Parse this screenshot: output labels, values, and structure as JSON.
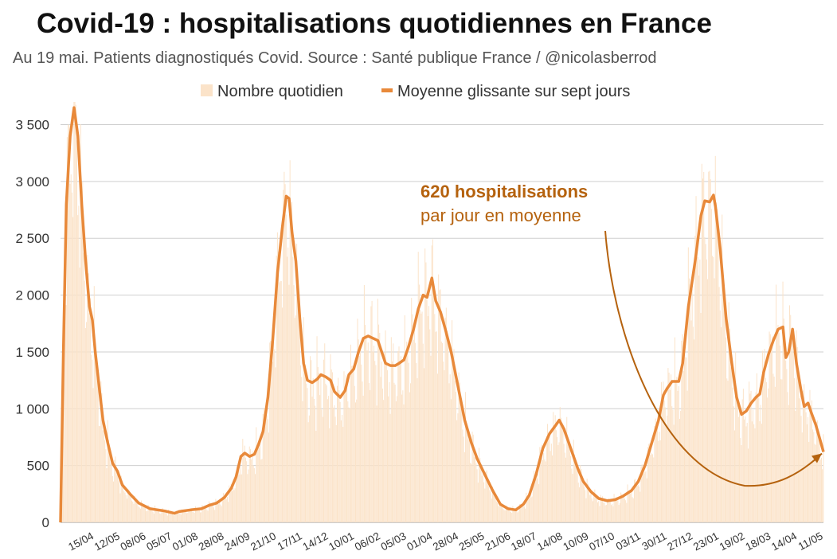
{
  "colors": {
    "bars": "#fbe3c9",
    "line": "#e8893a",
    "annotation": "#b5620e",
    "grid": "#cfcfcf"
  },
  "chart_data": {
    "type": "line",
    "title": "Covid-19 : hospitalisations quotidiennes en France",
    "subtitle": "Au 19 mai. Patients diagnostiqués Covid. Source : Santé publique France / @nicolasberrod",
    "legend": {
      "position": "top",
      "bars_label": "Nombre quotidien",
      "line_label": "Moyenne glissante sur sept jours"
    },
    "ylim": [
      0,
      3700
    ],
    "yticks": [
      0,
      500,
      1000,
      1500,
      2000,
      2500,
      3000,
      3500
    ],
    "ytick_labels": [
      "0",
      "500",
      "1 000",
      "1 500",
      "2 000",
      "2 500",
      "3 000",
      "3 500"
    ],
    "xlim": [
      "2020-03-19",
      "2022-05-19"
    ],
    "xticks": [
      {
        "date": "2020-04-15",
        "label": "15/04"
      },
      {
        "date": "2020-05-12",
        "label": "12/05"
      },
      {
        "date": "2020-06-08",
        "label": "08/06"
      },
      {
        "date": "2020-07-05",
        "label": "05/07"
      },
      {
        "date": "2020-08-01",
        "label": "01/08"
      },
      {
        "date": "2020-08-28",
        "label": "28/08"
      },
      {
        "date": "2020-09-24",
        "label": "24/09"
      },
      {
        "date": "2020-10-21",
        "label": "21/10"
      },
      {
        "date": "2020-11-17",
        "label": "17/11"
      },
      {
        "date": "2020-12-14",
        "label": "14/12"
      },
      {
        "date": "2021-01-10",
        "label": "10/01"
      },
      {
        "date": "2021-02-06",
        "label": "06/02"
      },
      {
        "date": "2021-03-05",
        "label": "05/03"
      },
      {
        "date": "2021-04-01",
        "label": "01/04"
      },
      {
        "date": "2021-04-28",
        "label": "28/04"
      },
      {
        "date": "2021-05-25",
        "label": "25/05"
      },
      {
        "date": "2021-06-21",
        "label": "21/06"
      },
      {
        "date": "2021-07-18",
        "label": "18/07"
      },
      {
        "date": "2021-08-14",
        "label": "14/08"
      },
      {
        "date": "2021-09-10",
        "label": "10/09"
      },
      {
        "date": "2021-10-07",
        "label": "07/10"
      },
      {
        "date": "2021-11-03",
        "label": "03/11"
      },
      {
        "date": "2021-11-30",
        "label": "30/11"
      },
      {
        "date": "2021-12-27",
        "label": "27/12"
      },
      {
        "date": "2022-01-23",
        "label": "23/01"
      },
      {
        "date": "2022-02-19",
        "label": "19/02"
      },
      {
        "date": "2022-03-18",
        "label": "18/03"
      },
      {
        "date": "2022-04-14",
        "label": "14/04"
      },
      {
        "date": "2022-05-11",
        "label": "11/05"
      }
    ],
    "series": [
      {
        "name": "Moyenne glissante sur sept jours",
        "type": "line",
        "points": [
          [
            "2020-03-19",
            0
          ],
          [
            "2020-03-22",
            1500
          ],
          [
            "2020-03-25",
            2800
          ],
          [
            "2020-03-29",
            3400
          ],
          [
            "2020-04-02",
            3650
          ],
          [
            "2020-04-06",
            3400
          ],
          [
            "2020-04-10",
            2800
          ],
          [
            "2020-04-14",
            2300
          ],
          [
            "2020-04-18",
            1900
          ],
          [
            "2020-04-21",
            1780
          ],
          [
            "2020-04-24",
            1500
          ],
          [
            "2020-04-28",
            1200
          ],
          [
            "2020-05-02",
            900
          ],
          [
            "2020-05-07",
            700
          ],
          [
            "2020-05-12",
            520
          ],
          [
            "2020-05-17",
            450
          ],
          [
            "2020-05-22",
            330
          ],
          [
            "2020-05-30",
            250
          ],
          [
            "2020-06-08",
            170
          ],
          [
            "2020-06-20",
            120
          ],
          [
            "2020-07-05",
            100
          ],
          [
            "2020-07-15",
            80
          ],
          [
            "2020-07-20",
            95
          ],
          [
            "2020-08-01",
            110
          ],
          [
            "2020-08-12",
            120
          ],
          [
            "2020-08-20",
            150
          ],
          [
            "2020-08-28",
            170
          ],
          [
            "2020-09-05",
            220
          ],
          [
            "2020-09-12",
            300
          ],
          [
            "2020-09-17",
            400
          ],
          [
            "2020-09-22",
            580
          ],
          [
            "2020-09-26",
            610
          ],
          [
            "2020-10-01",
            580
          ],
          [
            "2020-10-06",
            600
          ],
          [
            "2020-10-10",
            680
          ],
          [
            "2020-10-15",
            800
          ],
          [
            "2020-10-20",
            1100
          ],
          [
            "2020-10-25",
            1600
          ],
          [
            "2020-10-30",
            2200
          ],
          [
            "2020-11-04",
            2600
          ],
          [
            "2020-11-08",
            2870
          ],
          [
            "2020-11-11",
            2850
          ],
          [
            "2020-11-14",
            2550
          ],
          [
            "2020-11-18",
            2300
          ],
          [
            "2020-11-22",
            1800
          ],
          [
            "2020-11-26",
            1400
          ],
          [
            "2020-11-30",
            1250
          ],
          [
            "2020-12-05",
            1230
          ],
          [
            "2020-12-10",
            1260
          ],
          [
            "2020-12-14",
            1300
          ],
          [
            "2020-12-19",
            1280
          ],
          [
            "2020-12-24",
            1250
          ],
          [
            "2020-12-28",
            1150
          ],
          [
            "2021-01-03",
            1100
          ],
          [
            "2021-01-08",
            1160
          ],
          [
            "2021-01-12",
            1300
          ],
          [
            "2021-01-17",
            1350
          ],
          [
            "2021-01-22",
            1500
          ],
          [
            "2021-01-27",
            1620
          ],
          [
            "2021-02-01",
            1640
          ],
          [
            "2021-02-06",
            1620
          ],
          [
            "2021-02-11",
            1600
          ],
          [
            "2021-02-15",
            1500
          ],
          [
            "2021-02-19",
            1400
          ],
          [
            "2021-02-24",
            1380
          ],
          [
            "2021-03-01",
            1380
          ],
          [
            "2021-03-05",
            1400
          ],
          [
            "2021-03-10",
            1430
          ],
          [
            "2021-03-15",
            1550
          ],
          [
            "2021-03-20",
            1700
          ],
          [
            "2021-03-25",
            1880
          ],
          [
            "2021-03-30",
            2000
          ],
          [
            "2021-04-03",
            1980
          ],
          [
            "2021-04-08",
            2150
          ],
          [
            "2021-04-12",
            1950
          ],
          [
            "2021-04-17",
            1850
          ],
          [
            "2021-04-22",
            1700
          ],
          [
            "2021-04-28",
            1500
          ],
          [
            "2021-05-05",
            1200
          ],
          [
            "2021-05-12",
            900
          ],
          [
            "2021-05-19",
            700
          ],
          [
            "2021-05-25",
            560
          ],
          [
            "2021-06-02",
            420
          ],
          [
            "2021-06-10",
            280
          ],
          [
            "2021-06-18",
            160
          ],
          [
            "2021-06-26",
            120
          ],
          [
            "2021-07-04",
            110
          ],
          [
            "2021-07-12",
            160
          ],
          [
            "2021-07-18",
            240
          ],
          [
            "2021-07-25",
            420
          ],
          [
            "2021-08-01",
            650
          ],
          [
            "2021-08-08",
            780
          ],
          [
            "2021-08-14",
            850
          ],
          [
            "2021-08-18",
            900
          ],
          [
            "2021-08-23",
            820
          ],
          [
            "2021-08-30",
            650
          ],
          [
            "2021-09-06",
            480
          ],
          [
            "2021-09-12",
            360
          ],
          [
            "2021-09-20",
            270
          ],
          [
            "2021-09-28",
            210
          ],
          [
            "2021-10-07",
            190
          ],
          [
            "2021-10-15",
            200
          ],
          [
            "2021-10-23",
            230
          ],
          [
            "2021-11-01",
            280
          ],
          [
            "2021-11-08",
            360
          ],
          [
            "2021-11-15",
            500
          ],
          [
            "2021-11-22",
            700
          ],
          [
            "2021-11-29",
            900
          ],
          [
            "2021-12-04",
            1120
          ],
          [
            "2021-12-08",
            1180
          ],
          [
            "2021-12-13",
            1240
          ],
          [
            "2021-12-20",
            1240
          ],
          [
            "2021-12-24",
            1400
          ],
          [
            "2021-12-30",
            1900
          ],
          [
            "2022-01-06",
            2300
          ],
          [
            "2022-01-12",
            2700
          ],
          [
            "2022-01-16",
            2830
          ],
          [
            "2022-01-21",
            2820
          ],
          [
            "2022-01-25",
            2880
          ],
          [
            "2022-01-27",
            2780
          ],
          [
            "2022-02-01",
            2400
          ],
          [
            "2022-02-07",
            1800
          ],
          [
            "2022-02-13",
            1400
          ],
          [
            "2022-02-18",
            1100
          ],
          [
            "2022-02-23",
            950
          ],
          [
            "2022-02-28",
            980
          ],
          [
            "2022-03-05",
            1050
          ],
          [
            "2022-03-10",
            1100
          ],
          [
            "2022-03-14",
            1130
          ],
          [
            "2022-03-18",
            1320
          ],
          [
            "2022-03-23",
            1480
          ],
          [
            "2022-03-28",
            1600
          ],
          [
            "2022-04-02",
            1700
          ],
          [
            "2022-04-07",
            1720
          ],
          [
            "2022-04-10",
            1450
          ],
          [
            "2022-04-13",
            1500
          ],
          [
            "2022-04-17",
            1700
          ],
          [
            "2022-04-21",
            1400
          ],
          [
            "2022-04-26",
            1150
          ],
          [
            "2022-04-29",
            1020
          ],
          [
            "2022-05-03",
            1050
          ],
          [
            "2022-05-07",
            950
          ],
          [
            "2022-05-11",
            860
          ],
          [
            "2022-05-15",
            740
          ],
          [
            "2022-05-19",
            620
          ]
        ]
      }
    ],
    "annotation": {
      "bold_text": "620 hospitalisations",
      "normal_text": "par jour en moyenne",
      "points_to": [
        "2022-05-19",
        620
      ]
    }
  }
}
